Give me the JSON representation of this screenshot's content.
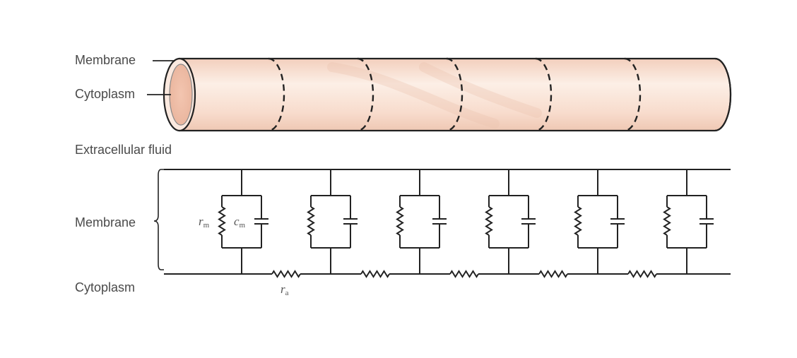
{
  "labels": {
    "membrane_top": "Membrane",
    "cytoplasm_top": "Cytoplasm",
    "extracellular": "Extracellular fluid",
    "membrane_circuit": "Membrane",
    "cytoplasm_circuit": "Cytoplasm"
  },
  "symbols": {
    "rm": {
      "base": "r",
      "sub": "m"
    },
    "cm": {
      "base": "c",
      "sub": "m"
    },
    "ra": {
      "base": "r",
      "sub": "a"
    }
  },
  "colors": {
    "tube_fill": "#f8dccd",
    "tube_highlight": "#fcefe6",
    "tube_shadow": "#efc8b4",
    "stroke": "#222222",
    "label": "#4a4a4a"
  },
  "diagram": {
    "tube_segments": 6,
    "membrane_units": 6,
    "axial_resistors": 5
  }
}
